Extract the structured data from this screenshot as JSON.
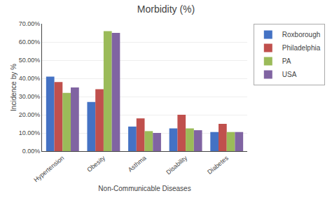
{
  "chart_data": {
    "type": "bar",
    "title": "Morbidity (%)",
    "xlabel": "Non-Communicable Diseases",
    "ylabel": "Incidence by %",
    "categories": [
      "Hypertension",
      "Obesity",
      "Asthma",
      "Disability",
      "Diabetes"
    ],
    "series": [
      {
        "name": "Roxborough",
        "color": "#4472C4",
        "values": [
          0.41,
          0.27,
          0.135,
          0.125,
          0.105
        ]
      },
      {
        "name": "Philadelphia",
        "color": "#C0504D",
        "values": [
          0.38,
          0.34,
          0.18,
          0.2,
          0.15
        ]
      },
      {
        "name": "PA",
        "color": "#9BBB59",
        "values": [
          0.32,
          0.66,
          0.11,
          0.125,
          0.105
        ]
      },
      {
        "name": "USA",
        "color": "#8064A2",
        "values": [
          0.35,
          0.65,
          0.1,
          0.115,
          0.105
        ]
      }
    ],
    "ylim": [
      0,
      0.7
    ],
    "yticks": [
      {
        "value": 0.0,
        "label": "0.00%"
      },
      {
        "value": 0.1,
        "label": "10.00%"
      },
      {
        "value": 0.2,
        "label": "20.00%"
      },
      {
        "value": 0.3,
        "label": "30.00%"
      },
      {
        "value": 0.4,
        "label": "40.00%"
      },
      {
        "value": 0.5,
        "label": "50.00%"
      },
      {
        "value": 0.6,
        "label": "60.00%"
      },
      {
        "value": 0.7,
        "label": "70.00%"
      }
    ],
    "grid": true,
    "legend": "right"
  }
}
